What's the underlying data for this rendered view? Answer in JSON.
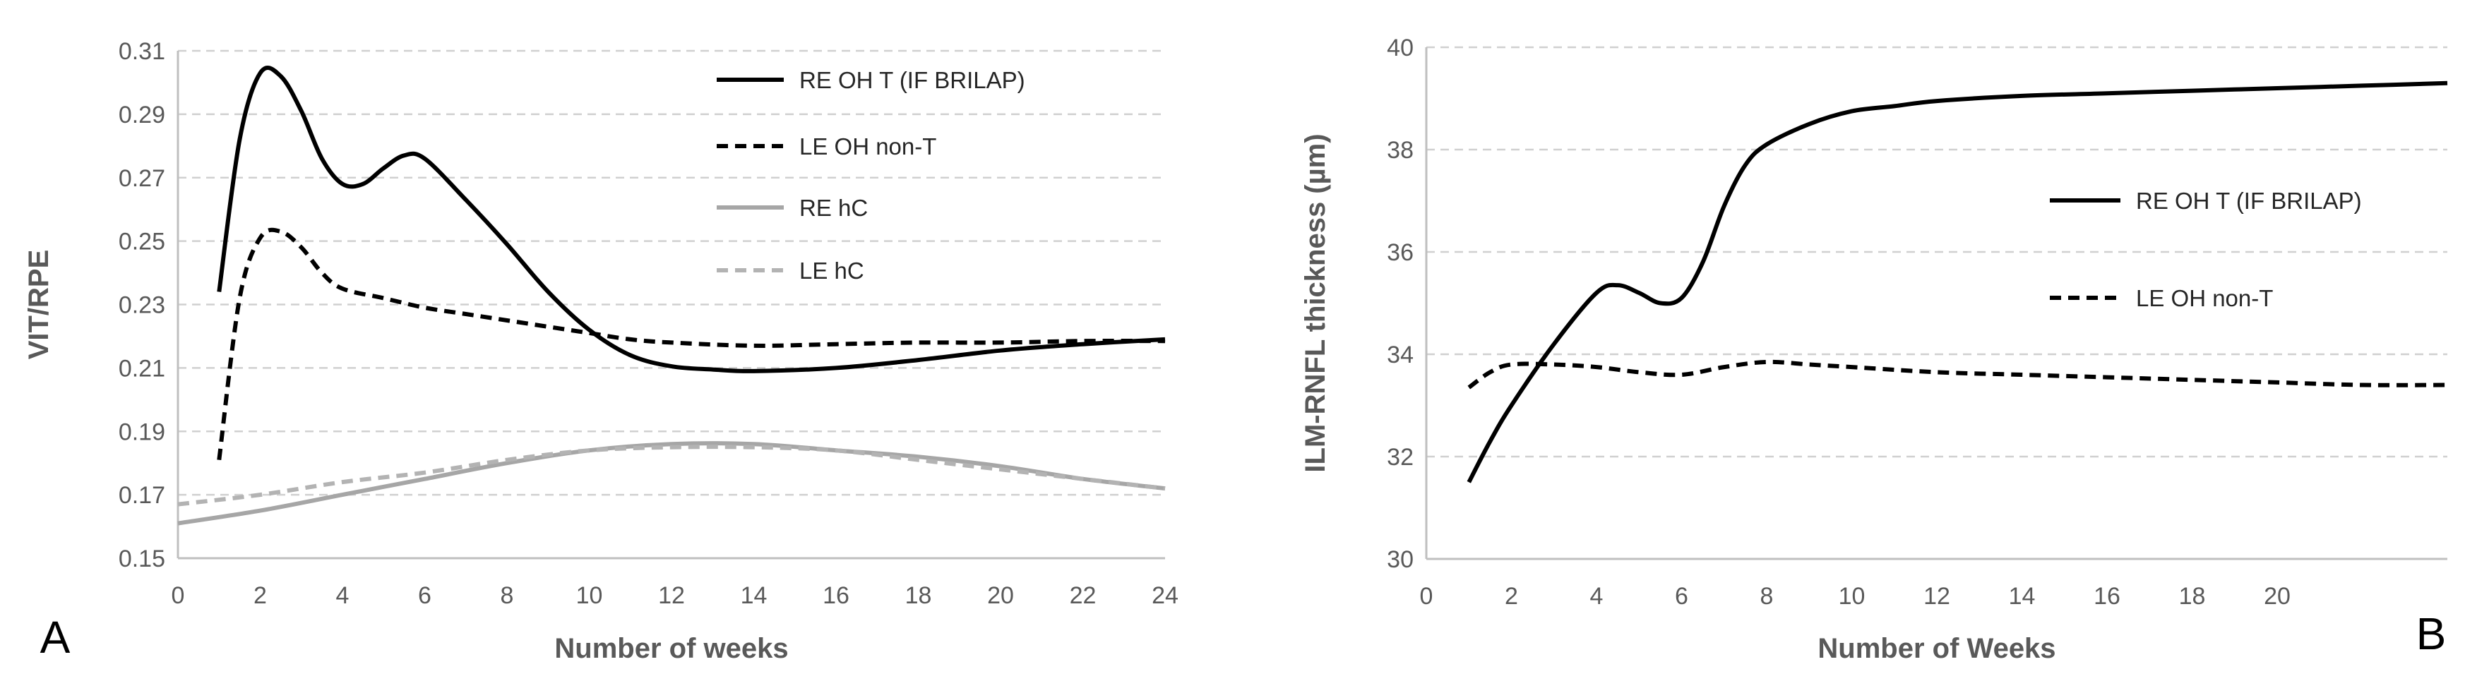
{
  "chart_data": [
    {
      "type": "line",
      "panel_label": "A",
      "xlabel": "Number of weeks",
      "ylabel": "VIT/RPE",
      "xlim": [
        0,
        24
      ],
      "ylim": [
        0.15,
        0.31
      ],
      "xticks": [
        0,
        2,
        4,
        6,
        8,
        10,
        12,
        14,
        16,
        18,
        20,
        22,
        24
      ],
      "yticks": [
        "0.15",
        "0.17",
        "0.19",
        "0.21",
        "0.23",
        "0.25",
        "0.27",
        "0.29",
        "0.31"
      ],
      "grid": "horizontal dashed",
      "legend_position": "top-right",
      "series": [
        {
          "name": "RE OH T (IF BRILAP)",
          "color": "#000000",
          "dash": "solid",
          "x": [
            1,
            1.5,
            2,
            2.5,
            3,
            3.5,
            4,
            4.5,
            5,
            5.5,
            6,
            7,
            8,
            9,
            10,
            11,
            12,
            13,
            14,
            16,
            18,
            20,
            22,
            24
          ],
          "y": [
            0.234,
            0.282,
            0.303,
            0.302,
            0.291,
            0.276,
            0.268,
            0.268,
            0.273,
            0.277,
            0.276,
            0.263,
            0.249,
            0.234,
            0.222,
            0.214,
            0.2105,
            0.2095,
            0.209,
            0.21,
            0.2125,
            0.2155,
            0.2175,
            0.219
          ]
        },
        {
          "name": "LE OH non-T",
          "color": "#000000",
          "dash": "dashed",
          "x": [
            1,
            1.5,
            2,
            2.5,
            3,
            3.5,
            4,
            5,
            6,
            7,
            8,
            9,
            10,
            11,
            12,
            14,
            16,
            18,
            20,
            22,
            24
          ],
          "y": [
            0.181,
            0.232,
            0.251,
            0.253,
            0.248,
            0.24,
            0.235,
            0.232,
            0.229,
            0.227,
            0.225,
            0.223,
            0.221,
            0.219,
            0.218,
            0.217,
            0.2175,
            0.218,
            0.218,
            0.2185,
            0.2185
          ]
        },
        {
          "name": "RE hC",
          "color": "#a6a6a6",
          "dash": "solid",
          "x": [
            0,
            2,
            4,
            6,
            8,
            10,
            12,
            14,
            16,
            18,
            20,
            22,
            24
          ],
          "y": [
            0.161,
            0.165,
            0.17,
            0.175,
            0.18,
            0.184,
            0.186,
            0.186,
            0.184,
            0.182,
            0.179,
            0.175,
            0.172
          ]
        },
        {
          "name": "LE hC",
          "color": "#b3b3b3",
          "dash": "dashed",
          "x": [
            0,
            2,
            4,
            6,
            8,
            10,
            12,
            14,
            16,
            18,
            20,
            22,
            24
          ],
          "y": [
            0.167,
            0.17,
            0.174,
            0.177,
            0.181,
            0.184,
            0.185,
            0.185,
            0.184,
            0.181,
            0.178,
            0.175,
            0.172
          ]
        }
      ]
    },
    {
      "type": "line",
      "panel_label": "B",
      "xlabel": "Number of Weeks",
      "ylabel": "ILM-RNFL thickness (µm)",
      "xlim": [
        0,
        24
      ],
      "ylim": [
        30,
        40
      ],
      "xticks": [
        0,
        2,
        4,
        6,
        8,
        10,
        12,
        14,
        16,
        18,
        20
      ],
      "yticks": [
        "30",
        "32",
        "34",
        "36",
        "38",
        "40"
      ],
      "grid": "horizontal dashed",
      "legend_position": "right",
      "series": [
        {
          "name": "RE OH T (IF  BRILAP)",
          "color": "#000000",
          "dash": "solid",
          "x": [
            1,
            1.5,
            2,
            3,
            4,
            4.5,
            5,
            5.5,
            6,
            6.5,
            7,
            7.5,
            8,
            9,
            10,
            11,
            12,
            14,
            16,
            18,
            20,
            22,
            24
          ],
          "y": [
            31.5,
            32.3,
            33.0,
            34.2,
            35.2,
            35.35,
            35.2,
            35.0,
            35.1,
            35.8,
            36.9,
            37.7,
            38.1,
            38.5,
            38.75,
            38.85,
            38.95,
            39.05,
            39.1,
            39.15,
            39.2,
            39.25,
            39.3
          ]
        },
        {
          "name": "LE OH non-T",
          "color": "#000000",
          "dash": "dashed",
          "x": [
            1,
            1.5,
            2,
            3,
            4,
            5,
            6,
            7,
            8,
            9,
            10,
            12,
            14,
            16,
            18,
            20,
            22,
            24
          ],
          "y": [
            33.35,
            33.65,
            33.8,
            33.8,
            33.75,
            33.65,
            33.6,
            33.75,
            33.85,
            33.8,
            33.75,
            33.65,
            33.6,
            33.55,
            33.5,
            33.45,
            33.4,
            33.4
          ]
        }
      ]
    }
  ]
}
